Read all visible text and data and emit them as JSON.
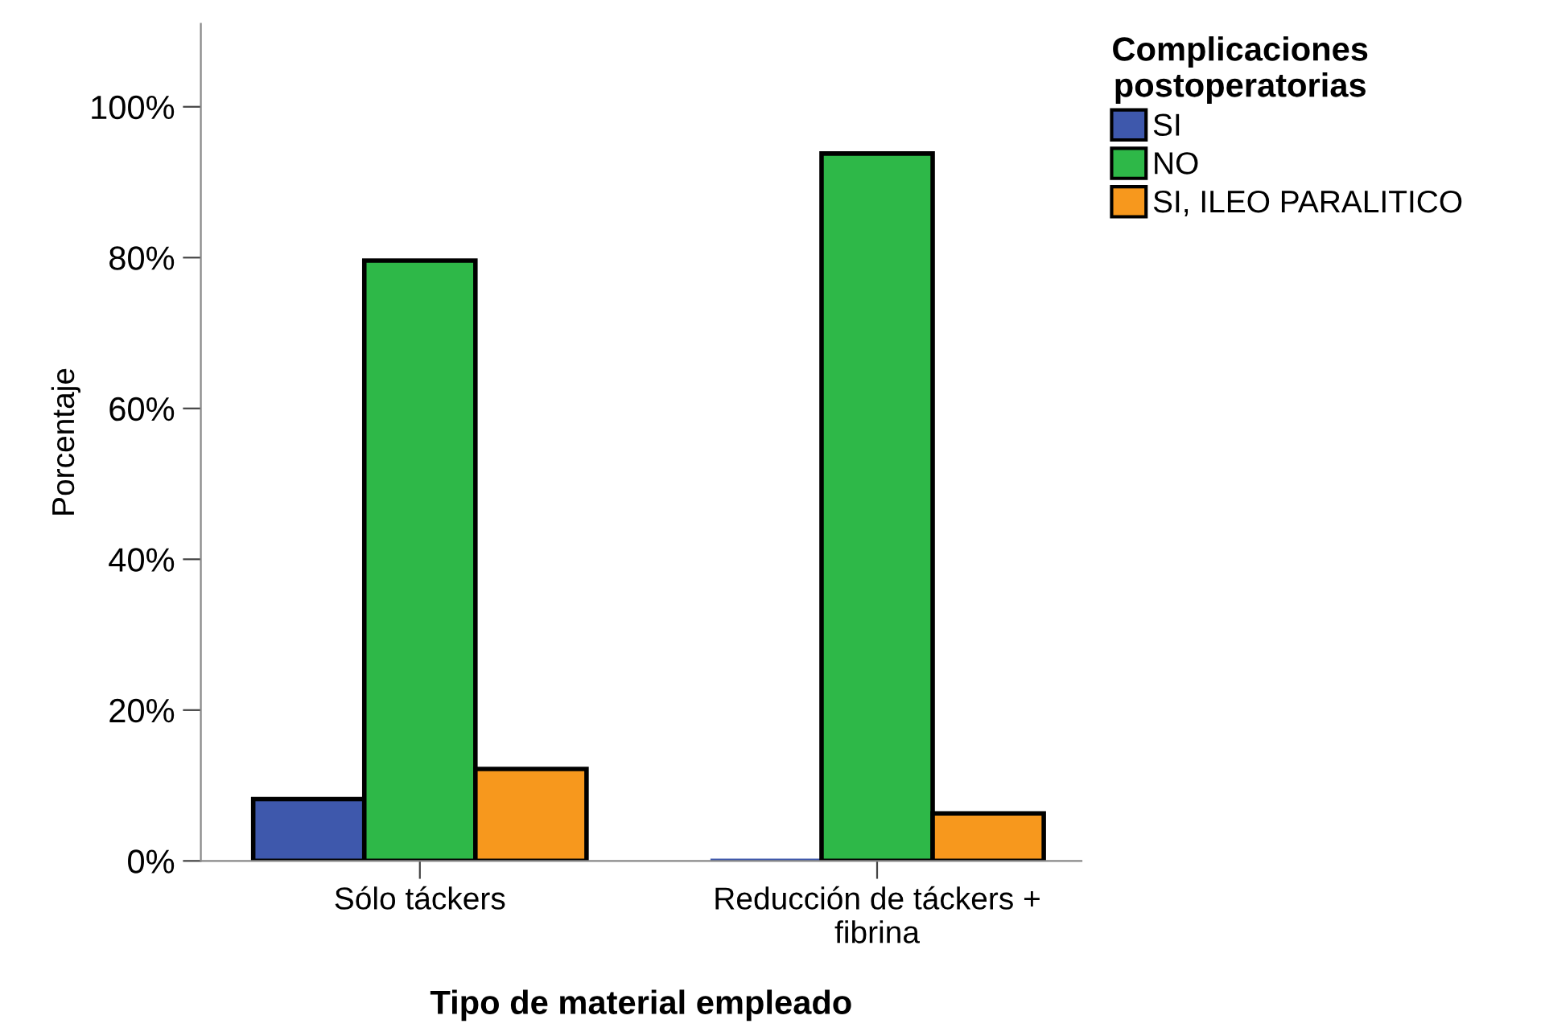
{
  "chart_data": {
    "type": "bar",
    "xlabel": "Tipo de material empleado",
    "ylabel": "Porcentaje",
    "legend_title": "Complicaciones\npostoperatorias",
    "categories": [
      "Sólo táckers",
      "Reducción de táckers +\nfibrina"
    ],
    "series": [
      {
        "name": "SI",
        "color": "#3e58ac",
        "values": [
          8.2,
          0
        ]
      },
      {
        "name": "NO",
        "color": "#2eb848",
        "values": [
          79.6,
          93.8
        ]
      },
      {
        "name": "SI, ILEO PARALITICO",
        "color": "#f7981d",
        "values": [
          12.2,
          6.3
        ]
      }
    ],
    "ylim": [
      0,
      111
    ],
    "yticks": [
      {
        "value": 0,
        "label": "0%"
      },
      {
        "value": 20,
        "label": "20%"
      },
      {
        "value": 40,
        "label": "40%"
      },
      {
        "value": 60,
        "label": "60%"
      },
      {
        "value": 80,
        "label": "80%"
      },
      {
        "value": 100,
        "label": "100%"
      }
    ],
    "grid": false,
    "legend": "right"
  }
}
